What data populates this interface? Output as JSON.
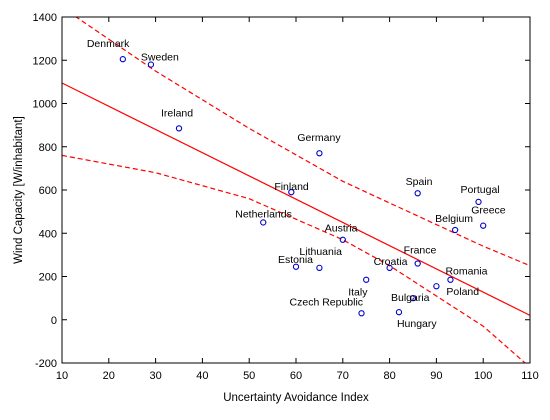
{
  "chart_data": {
    "type": "scatter",
    "title": "",
    "xlabel": "Uncertainty Avoidance Index",
    "ylabel": "Wind Capacity [W/inhabitant]",
    "xlim": [
      10,
      110
    ],
    "ylim": [
      -200,
      1400
    ],
    "xticks": [
      10,
      20,
      30,
      40,
      50,
      60,
      70,
      80,
      90,
      100,
      110
    ],
    "yticks": [
      -200,
      0,
      200,
      400,
      600,
      800,
      1000,
      1200,
      1400
    ],
    "grid": false,
    "colors": {
      "points": "#0000cc",
      "fit": "#ff0000",
      "frame": "#000000"
    },
    "points": [
      {
        "label": "Denmark",
        "x": 23,
        "y": 1205
      },
      {
        "label": "Sweden",
        "x": 29,
        "y": 1180
      },
      {
        "label": "Ireland",
        "x": 35,
        "y": 885
      },
      {
        "label": "Germany",
        "x": 65,
        "y": 770
      },
      {
        "label": "Finland",
        "x": 59,
        "y": 590
      },
      {
        "label": "Spain",
        "x": 86,
        "y": 585
      },
      {
        "label": "Portugal",
        "x": 99,
        "y": 545
      },
      {
        "label": "Netherlands",
        "x": 53,
        "y": 450
      },
      {
        "label": "Belgium",
        "x": 94,
        "y": 415
      },
      {
        "label": "Greece",
        "x": 100,
        "y": 435
      },
      {
        "label": "Austria",
        "x": 70,
        "y": 370
      },
      {
        "label": "France",
        "x": 86,
        "y": 260
      },
      {
        "label": "Estonia",
        "x": 60,
        "y": 245
      },
      {
        "label": "Lithuania",
        "x": 65,
        "y": 240
      },
      {
        "label": "Croatia",
        "x": 80,
        "y": 240
      },
      {
        "label": "Romania",
        "x": 93,
        "y": 185
      },
      {
        "label": "Italy",
        "x": 75,
        "y": 185
      },
      {
        "label": "Poland",
        "x": 90,
        "y": 155
      },
      {
        "label": "Bulgaria",
        "x": 85,
        "y": 100
      },
      {
        "label": "Czech Republic",
        "x": 74,
        "y": 30
      },
      {
        "label": "Hungary",
        "x": 82,
        "y": 35
      }
    ],
    "fit_line": {
      "x": [
        10,
        110
      ],
      "y": [
        1095,
        20
      ]
    },
    "confidence_upper": {
      "x": [
        10,
        30,
        50,
        70,
        80,
        90,
        100,
        110
      ],
      "y": [
        1445,
        1150,
        885,
        640,
        540,
        440,
        340,
        250
      ]
    },
    "confidence_lower": {
      "x": [
        10,
        30,
        50,
        70,
        80,
        90,
        100,
        110
      ],
      "y": [
        760,
        680,
        560,
        370,
        250,
        110,
        -30,
        -220
      ]
    }
  }
}
